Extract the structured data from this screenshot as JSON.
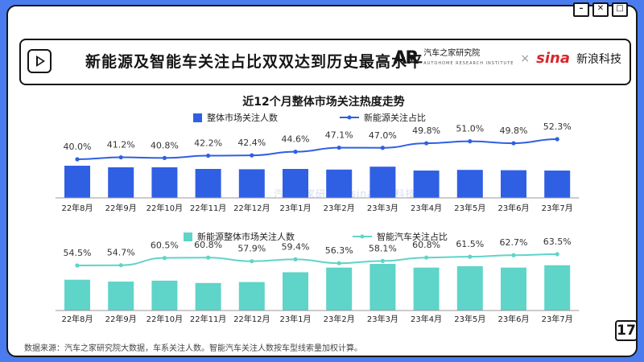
{
  "header": {
    "title": "新能源及智能车关注占比双双达到历史最高水平",
    "logo_ar_cn": "汽车之家研究院",
    "logo_ar_en": "AUTOHOME RESEARCH INSTITUTE",
    "logo_sina": "sina",
    "logo_sina_cn": "新浪科技"
  },
  "footer": {
    "source": "数据来源：汽车之家研究院大数据，车系关注人数。智能汽车关注人数按车型线索量加权计算。",
    "page": "17"
  },
  "watermark": "汽车之家研究院 sina新浪科技",
  "colors": {
    "bar_top": "#2f5fe3",
    "line_top": "#2f5fe3",
    "bar_bottom": "#5fd4c8",
    "line_bottom": "#5fd4c8",
    "frame": "#4a7cf0"
  },
  "chart_data": [
    {
      "type": "bar",
      "title": "近12个月整体市场关注热度走势",
      "categories": [
        "22年8月",
        "22年9月",
        "22年10月",
        "22年11月",
        "22年12月",
        "23年1月",
        "23年2月",
        "23年3月",
        "23年4月",
        "23年5月",
        "23年6月",
        "23年7月"
      ],
      "series": [
        {
          "name": "整体市场关注人数",
          "kind": "bar",
          "values": [
            100,
            95,
            95,
            90,
            89,
            90,
            88,
            97,
            85,
            87,
            86,
            85
          ]
        },
        {
          "name": "新能源关注占比",
          "kind": "line",
          "values": [
            40.0,
            41.2,
            40.8,
            42.2,
            42.4,
            44.6,
            47.1,
            47.0,
            49.8,
            51.0,
            49.8,
            52.3
          ],
          "labels": [
            "40.0%",
            "41.2%",
            "40.8%",
            "42.2%",
            "42.4%",
            "44.6%",
            "47.1%",
            "47.0%",
            "49.8%",
            "51.0%",
            "49.8%",
            "52.3%"
          ]
        }
      ],
      "legend": "top"
    },
    {
      "type": "bar",
      "categories": [
        "22年8月",
        "22年9月",
        "22年10月",
        "22年11月",
        "22年12月",
        "23年1月",
        "23年2月",
        "23年3月",
        "23年4月",
        "23年5月",
        "23年6月",
        "23年7月"
      ],
      "series": [
        {
          "name": "新能源整体市场关注人数",
          "kind": "bar",
          "values": [
            66,
            62,
            64,
            59,
            61,
            82,
            92,
            100,
            92,
            95,
            92,
            97
          ]
        },
        {
          "name": "智能汽车关注占比",
          "kind": "line",
          "values": [
            54.5,
            54.7,
            60.5,
            60.8,
            57.9,
            59.4,
            56.3,
            58.1,
            60.8,
            61.5,
            62.7,
            63.5
          ],
          "labels": [
            "54.5%",
            "54.7%",
            "60.5%",
            "60.8%",
            "57.9%",
            "59.4%",
            "56.3%",
            "58.1%",
            "60.8%",
            "61.5%",
            "62.7%",
            "63.5%"
          ]
        }
      ],
      "legend": "top"
    }
  ]
}
